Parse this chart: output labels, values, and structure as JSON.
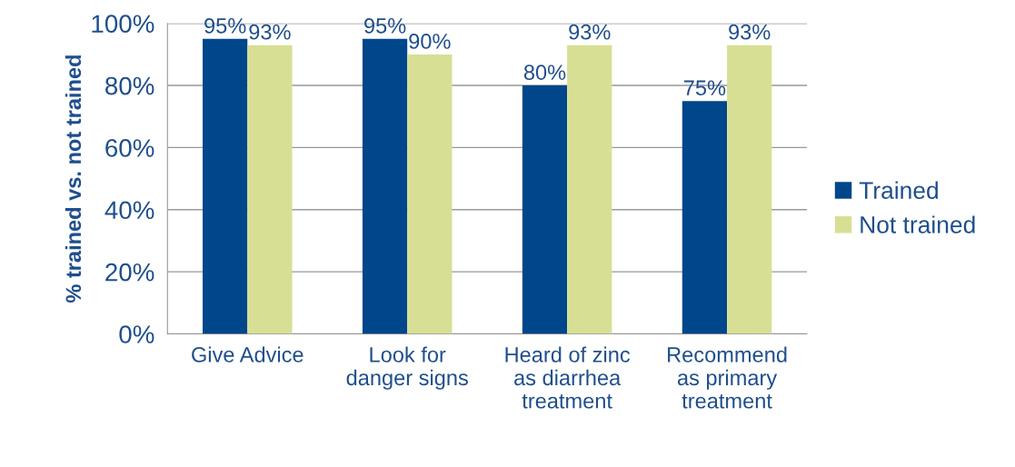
{
  "chart_data": {
    "type": "bar",
    "ylabel": "% trained vs. not trained",
    "categories": [
      "Give Advice",
      "Look for\ndanger signs",
      "Heard of zinc\nas diarrhea\ntreatment",
      "Recommend\nas primary\ntreatment"
    ],
    "series": [
      {
        "name": "Trained",
        "color": "#00468b",
        "values": [
          95,
          95,
          80,
          75
        ],
        "value_labels": [
          "95%",
          "95%",
          "80%",
          "75%"
        ]
      },
      {
        "name": "Not trained",
        "color": "#d7df95",
        "values": [
          93,
          90,
          93,
          93
        ],
        "value_labels": [
          "93%",
          "90%",
          "93%",
          "93%"
        ]
      }
    ],
    "ylim": [
      0,
      100
    ],
    "yticks": [
      {
        "value": 0,
        "label": "0%"
      },
      {
        "value": 20,
        "label": "20%"
      },
      {
        "value": 40,
        "label": "40%"
      },
      {
        "value": 60,
        "label": "60%"
      },
      {
        "value": 80,
        "label": "80%"
      },
      {
        "value": 100,
        "label": "100%"
      }
    ],
    "grid": "y",
    "legend": "right"
  }
}
